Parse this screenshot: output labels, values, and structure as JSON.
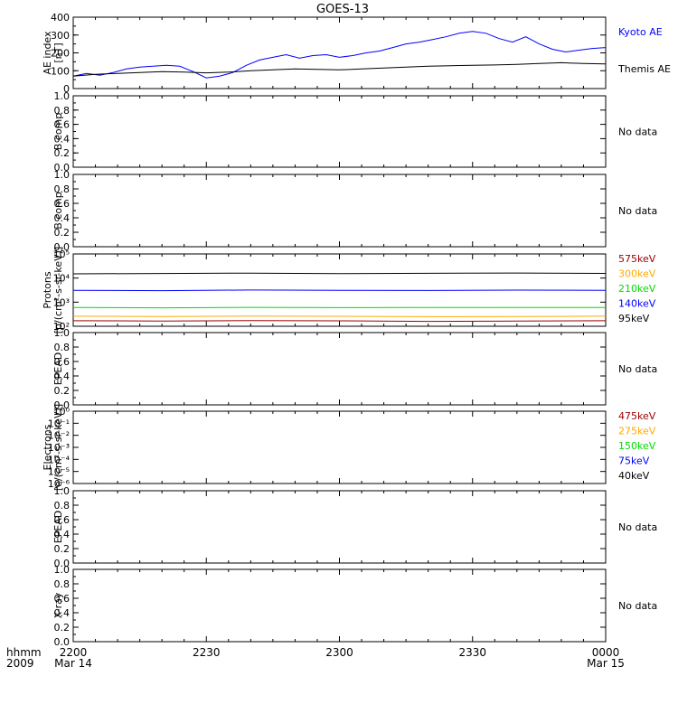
{
  "title": "GOES-13",
  "colors": {
    "black": "#000000",
    "blue": "#0000ff",
    "green": "#00dd00",
    "orange": "#ffaa00",
    "darkred": "#990000",
    "kyoto": "#0000ff"
  },
  "time_axis": {
    "row_label_1": "hhmm",
    "row_label_2": "2009",
    "ticks": [
      {
        "t": 0,
        "label": "2200",
        "sub": "Mar 14"
      },
      {
        "t": 30,
        "label": "2230",
        "sub": ""
      },
      {
        "t": 60,
        "label": "2300",
        "sub": ""
      },
      {
        "t": 90,
        "label": "2330",
        "sub": ""
      },
      {
        "t": 120,
        "label": "0000",
        "sub": "Mar 15"
      }
    ]
  },
  "chart_data": [
    {
      "id": "ae",
      "type": "line",
      "ylabel": [
        "AE index",
        "[nT]"
      ],
      "ylim": [
        0,
        400
      ],
      "yticks": [
        0,
        100,
        200,
        300,
        400
      ],
      "x_range_minutes": [
        0,
        120
      ],
      "series": [
        {
          "name": "Kyoto AE",
          "color": "#0000ff",
          "x": [
            0,
            3,
            6,
            9,
            12,
            15,
            18,
            21,
            24,
            27,
            30,
            33,
            36,
            39,
            42,
            45,
            48,
            51,
            54,
            57,
            60,
            63,
            66,
            69,
            72,
            75,
            78,
            81,
            84,
            87,
            90,
            93,
            96,
            99,
            102,
            105,
            108,
            111,
            114,
            117,
            120
          ],
          "values": [
            70,
            85,
            75,
            90,
            110,
            120,
            125,
            130,
            125,
            95,
            60,
            70,
            90,
            130,
            160,
            175,
            190,
            170,
            185,
            190,
            175,
            185,
            200,
            210,
            230,
            250,
            260,
            275,
            290,
            310,
            320,
            310,
            280,
            260,
            290,
            250,
            220,
            205,
            215,
            225,
            230
          ]
        },
        {
          "name": "Themis AE",
          "color": "#000000",
          "x": [
            0,
            5,
            10,
            15,
            20,
            25,
            30,
            35,
            40,
            45,
            50,
            55,
            60,
            65,
            70,
            75,
            80,
            85,
            90,
            95,
            100,
            105,
            110,
            115,
            120
          ],
          "values": [
            70,
            80,
            85,
            90,
            95,
            92,
            88,
            92,
            100,
            105,
            110,
            108,
            105,
            110,
            115,
            120,
            125,
            128,
            130,
            132,
            135,
            140,
            145,
            140,
            138
          ]
        }
      ]
    },
    {
      "id": "b1",
      "type": "line",
      "ylabel": [
        "B comp"
      ],
      "ylim": [
        0,
        1
      ],
      "yticks": [
        0.0,
        0.2,
        0.4,
        0.6,
        0.8,
        1.0
      ],
      "nodata": "No data"
    },
    {
      "id": "b2",
      "type": "line",
      "ylabel": [
        "B comp"
      ],
      "ylim": [
        0,
        1
      ],
      "yticks": [
        0.0,
        0.2,
        0.4,
        0.6,
        0.8,
        1.0
      ],
      "nodata": "No data"
    },
    {
      "id": "protons",
      "type": "line",
      "log": true,
      "ylabel": [
        "Protons",
        "[p/(cm²-s-sr-keV)]"
      ],
      "ylim": [
        100,
        100000
      ],
      "yticks": [
        "10²",
        "10³",
        "10⁴",
        "10⁵"
      ],
      "ytick_values": [
        100,
        1000,
        10000,
        100000
      ],
      "x_range_minutes": [
        0,
        120
      ],
      "series": [
        {
          "name": "575keV",
          "color": "#990000",
          "x": [
            0,
            20,
            40,
            60,
            80,
            100,
            120
          ],
          "values": [
            170,
            165,
            172,
            168,
            160,
            165,
            170
          ]
        },
        {
          "name": "300keV",
          "color": "#ffaa00",
          "x": [
            0,
            20,
            40,
            60,
            80,
            100,
            120
          ],
          "values": [
            260,
            255,
            265,
            258,
            250,
            255,
            262
          ]
        },
        {
          "name": "210keV",
          "color": "#00dd00",
          "x": [
            0,
            20,
            40,
            60,
            80,
            100,
            120
          ],
          "values": [
            600,
            580,
            610,
            590,
            595,
            600,
            605
          ]
        },
        {
          "name": "140keV",
          "color": "#0000ff",
          "x": [
            0,
            20,
            40,
            60,
            80,
            100,
            120
          ],
          "values": [
            3100,
            3000,
            3200,
            3100,
            3050,
            3150,
            3100
          ]
        },
        {
          "name": "95keV",
          "color": "#000000",
          "x": [
            0,
            20,
            40,
            60,
            80,
            100,
            120
          ],
          "values": [
            15000,
            15500,
            16000,
            15200,
            15800,
            16200,
            15600
          ]
        }
      ]
    },
    {
      "id": "epead1",
      "type": "line",
      "ylabel": [
        "EPEAD"
      ],
      "ylim": [
        0,
        1
      ],
      "yticks": [
        0.0,
        0.2,
        0.4,
        0.6,
        0.8,
        1.0
      ],
      "nodata": "No data"
    },
    {
      "id": "electrons",
      "type": "line",
      "log": true,
      "ylabel": [
        "Electrons",
        "[e/(cm²-s-sr-keV)]"
      ],
      "ylim": [
        1e-06,
        1
      ],
      "yticks": [
        "10⁻⁶",
        "10⁻⁵",
        "10⁻⁴",
        "10⁻³",
        "10⁻²",
        "10⁻¹",
        "10⁰"
      ],
      "ytick_values": [
        1e-06,
        1e-05,
        0.0001,
        0.001,
        0.01,
        0.1,
        1
      ],
      "legend": [
        {
          "name": "475keV",
          "color": "#990000"
        },
        {
          "name": "275keV",
          "color": "#ffaa00"
        },
        {
          "name": "150keV",
          "color": "#00dd00"
        },
        {
          "name": "75keV",
          "color": "#0000ff"
        },
        {
          "name": "40keV",
          "color": "#000000"
        }
      ]
    },
    {
      "id": "epead2",
      "type": "line",
      "ylabel": [
        "EPEAD"
      ],
      "ylim": [
        0,
        1
      ],
      "yticks": [
        0.0,
        0.2,
        0.4,
        0.6,
        0.8,
        1.0
      ],
      "nodata": "No data"
    },
    {
      "id": "xray",
      "type": "line",
      "ylabel": [
        "X-ray"
      ],
      "ylim": [
        0,
        1
      ],
      "yticks": [
        0.0,
        0.2,
        0.4,
        0.6,
        0.8,
        1.0
      ],
      "nodata": "No data"
    }
  ]
}
